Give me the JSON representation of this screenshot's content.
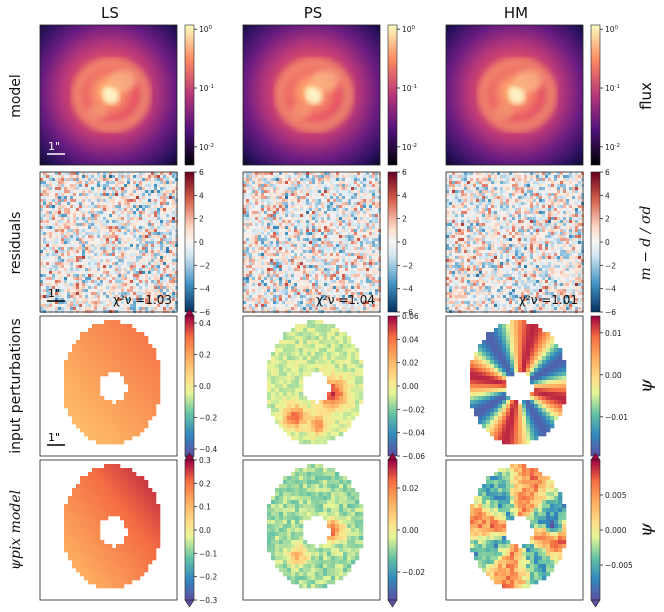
{
  "columns": [
    "LS",
    "PS",
    "HM"
  ],
  "rows": [
    {
      "label": "model",
      "right_label": "flux",
      "colorbar_ticks": [
        "10^0",
        "10^-1",
        "10^-2"
      ]
    },
    {
      "label": "residuals",
      "right_label": "m − d / σd",
      "colorbar_ticks": [
        "6",
        "4",
        "2",
        "0",
        "−2",
        "−4",
        "−6"
      ]
    },
    {
      "label": "input perturbations",
      "right_label": "ψ"
    },
    {
      "label": "ψpix model",
      "right_label": "ψ"
    }
  ],
  "scale_bar": "1\"",
  "chi2": [
    "χ²ν =1.03",
    "χ²ν =1.04",
    "χ²ν =1.01"
  ],
  "cbars_perturb": [
    [
      "0.4",
      "0.2",
      "0.0",
      "−0.2",
      "−0.4"
    ],
    [
      "0.06",
      "0.04",
      "0.02",
      "0.00",
      "−0.02",
      "−0.04",
      "−0.06"
    ],
    [
      "0.01",
      "0.00",
      "−0.01"
    ]
  ],
  "cbars_pix": [
    [
      "0.3",
      "0.2",
      "0.1",
      "0.0",
      "−0.1",
      "−0.2",
      "−0.3"
    ],
    [
      "0.02",
      "0.00",
      "−0.02"
    ],
    [
      "0.005",
      "0.000",
      "−0.005"
    ]
  ],
  "colors": {
    "magma_dark": "#0d0829",
    "magma_mid": "#b5367a",
    "magma_light": "#fcfdbf"
  }
}
